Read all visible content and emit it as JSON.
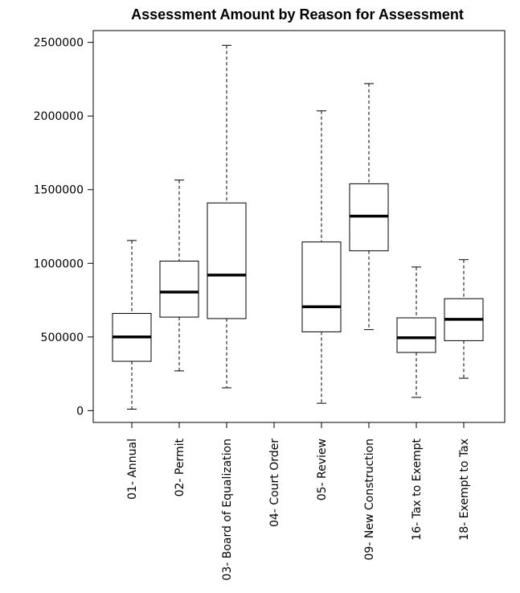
{
  "chart_data": {
    "type": "boxplot",
    "title": "Assessment Amount by Reason for Assessment",
    "xlabel": "",
    "ylabel": "",
    "ylim": [
      -80000,
      2580000
    ],
    "y_ticks": [
      0,
      500000,
      1000000,
      1500000,
      2000000,
      2500000
    ],
    "y_tick_labels": [
      "0",
      "500000",
      "1000000",
      "1500000",
      "2000000",
      "2500000"
    ],
    "grid": false,
    "categories": [
      "01- Annual",
      "02- Permit",
      "03- Board of Equalization",
      "04- Court Order",
      "05- Review",
      "09- New Construction",
      "16- Tax to Exempt",
      "18- Exempt to Tax"
    ],
    "boxes": [
      {
        "whisker_low": 10000,
        "q1": 335000,
        "median": 500000,
        "q3": 660000,
        "whisker_high": 1155000
      },
      {
        "whisker_low": 270000,
        "q1": 635000,
        "median": 805000,
        "q3": 1015000,
        "whisker_high": 1565000
      },
      {
        "whisker_low": 155000,
        "q1": 625000,
        "median": 920000,
        "q3": 1410000,
        "whisker_high": 2480000
      },
      null,
      {
        "whisker_low": 50000,
        "q1": 535000,
        "median": 705000,
        "q3": 1145000,
        "whisker_high": 2035000
      },
      {
        "whisker_low": 550000,
        "q1": 1085000,
        "median": 1320000,
        "q3": 1540000,
        "whisker_high": 2220000
      },
      {
        "whisker_low": 90000,
        "q1": 395000,
        "median": 495000,
        "q3": 630000,
        "whisker_high": 975000
      },
      {
        "whisker_low": 220000,
        "q1": 475000,
        "median": 620000,
        "q3": 760000,
        "whisker_high": 1025000
      }
    ]
  }
}
